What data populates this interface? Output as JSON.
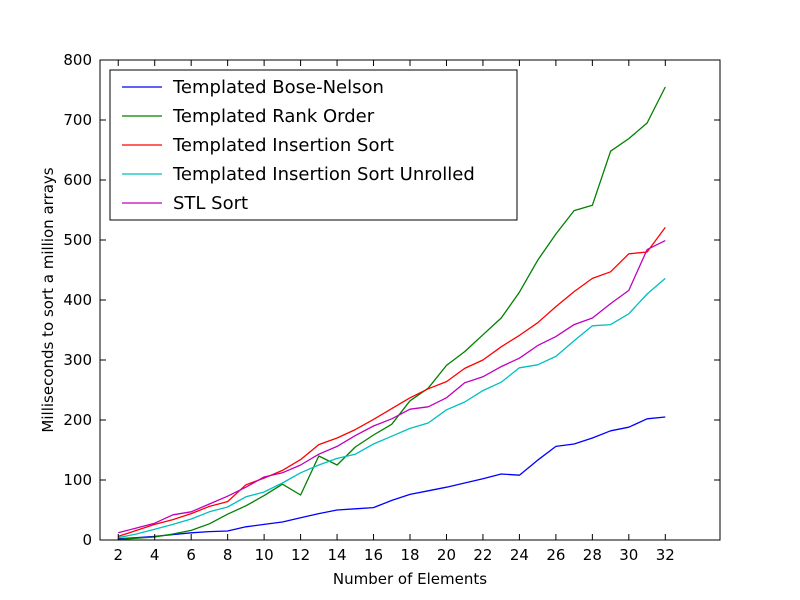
{
  "chart_data": {
    "type": "line",
    "xlabel": "Number of Elements",
    "ylabel": "Milliseconds to sort a million arrays",
    "xlim": [
      1,
      35
    ],
    "ylim": [
      0,
      800
    ],
    "xticks": [
      2,
      4,
      6,
      8,
      10,
      12,
      14,
      16,
      18,
      20,
      22,
      24,
      26,
      28,
      30,
      32
    ],
    "yticks": [
      0,
      100,
      200,
      300,
      400,
      500,
      600,
      700,
      800
    ],
    "grid": false,
    "legend_position": "upper-left",
    "x": [
      2,
      3,
      4,
      5,
      6,
      7,
      8,
      9,
      10,
      11,
      12,
      13,
      14,
      15,
      16,
      17,
      18,
      19,
      20,
      21,
      22,
      23,
      24,
      25,
      26,
      27,
      28,
      29,
      30,
      31,
      32
    ],
    "series": [
      {
        "name": "Templated Bose-Nelson",
        "color": "#0000ff",
        "values": [
          2,
          4,
          6,
          9,
          12,
          14,
          15,
          22,
          26,
          30,
          37,
          44,
          50,
          52,
          54,
          66,
          76,
          82,
          88,
          95,
          102,
          110,
          108,
          133,
          156,
          160,
          170,
          182,
          188,
          202,
          205
        ]
      },
      {
        "name": "Templated Rank Order",
        "color": "#008000",
        "values": [
          1,
          3,
          5,
          10,
          16,
          27,
          43,
          57,
          74,
          93,
          75,
          140,
          125,
          155,
          175,
          193,
          232,
          253,
          291,
          314,
          342,
          370,
          413,
          466,
          510,
          549,
          558,
          648,
          669,
          695,
          755
        ]
      },
      {
        "name": "Templated Insertion Sort",
        "color": "#ff0000",
        "values": [
          6,
          16,
          26,
          34,
          44,
          56,
          64,
          92,
          103,
          116,
          134,
          159,
          170,
          184,
          201,
          219,
          237,
          252,
          264,
          286,
          300,
          322,
          341,
          362,
          389,
          414,
          436,
          447,
          477,
          480,
          521
        ]
      },
      {
        "name": "Templated Insertion Sort Unrolled",
        "color": "#00bfbf",
        "values": [
          4,
          10,
          18,
          26,
          35,
          47,
          55,
          72,
          80,
          95,
          112,
          125,
          136,
          143,
          160,
          173,
          186,
          195,
          217,
          230,
          249,
          263,
          287,
          292,
          306,
          332,
          357,
          359,
          377,
          410,
          436
        ]
      },
      {
        "name": "STL Sort",
        "color": "#bf00bf",
        "values": [
          12,
          20,
          28,
          42,
          47,
          60,
          73,
          88,
          105,
          112,
          125,
          143,
          156,
          174,
          190,
          202,
          218,
          222,
          237,
          262,
          272,
          289,
          303,
          324,
          339,
          359,
          370,
          394,
          416,
          484,
          499
        ]
      }
    ]
  }
}
